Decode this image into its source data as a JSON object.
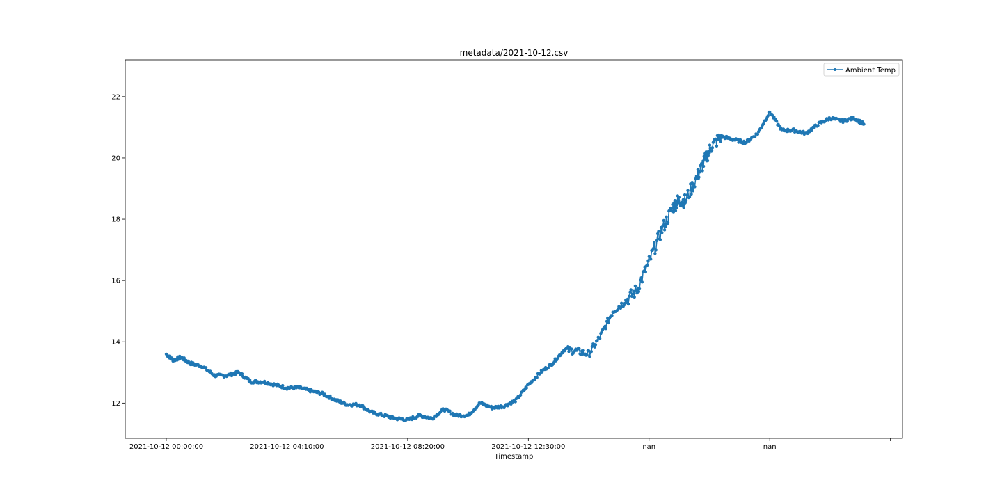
{
  "chart_data": {
    "type": "line",
    "title": "metadata/2021-10-12.csv",
    "xlabel": "Timestamp",
    "ylabel": "",
    "x_tick_labels": [
      "2021-10-12 00:00:00",
      "2021-10-12 04:10:00",
      "2021-10-12 08:20:00",
      "2021-10-12 12:30:00",
      "nan",
      "nan",
      ""
    ],
    "y_ticks": [
      12,
      14,
      16,
      18,
      20,
      22
    ],
    "xlim": [
      -1.7,
      30.5
    ],
    "ylim": [
      10.85,
      23.2
    ],
    "grid": false,
    "legend_position": "top-right",
    "series": [
      {
        "name": "Ambient Temp",
        "color": "#1f77b4",
        "marker": "circle",
        "x": [
          0,
          0.3,
          0.6,
          1,
          1.5,
          2,
          2.5,
          3,
          3.5,
          4,
          4.5,
          5,
          5.5,
          6,
          6.5,
          7,
          7.5,
          8,
          8.5,
          9,
          9.5,
          10,
          10.5,
          11,
          11.5,
          12,
          12.5,
          13,
          13.5,
          14,
          14.5,
          15,
          15.5,
          16,
          16.5,
          17,
          17.5,
          18,
          18.5,
          19,
          19.5,
          20,
          20.5,
          21,
          21.2,
          21.5,
          22,
          22.3,
          22.6,
          23,
          23.5,
          24,
          24.5,
          25,
          25.5,
          26,
          26.5,
          27,
          27.5,
          28,
          28.5,
          28.9
        ],
        "y": [
          13.6,
          13.4,
          13.5,
          13.3,
          13.2,
          12.9,
          12.9,
          13.0,
          12.7,
          12.7,
          12.6,
          12.5,
          12.5,
          12.4,
          12.3,
          12.1,
          11.95,
          11.95,
          11.7,
          11.6,
          11.5,
          11.45,
          11.6,
          11.5,
          11.8,
          11.6,
          11.6,
          12.0,
          11.85,
          11.9,
          12.1,
          12.6,
          13.0,
          13.3,
          13.75,
          13.7,
          13.6,
          14.2,
          15.0,
          15.3,
          15.7,
          16.6,
          17.6,
          18.4,
          18.6,
          18.6,
          19.4,
          19.9,
          20.4,
          20.7,
          20.6,
          20.5,
          20.8,
          21.5,
          20.9,
          20.9,
          20.8,
          21.1,
          21.3,
          21.2,
          21.3,
          21.1
        ]
      }
    ]
  }
}
